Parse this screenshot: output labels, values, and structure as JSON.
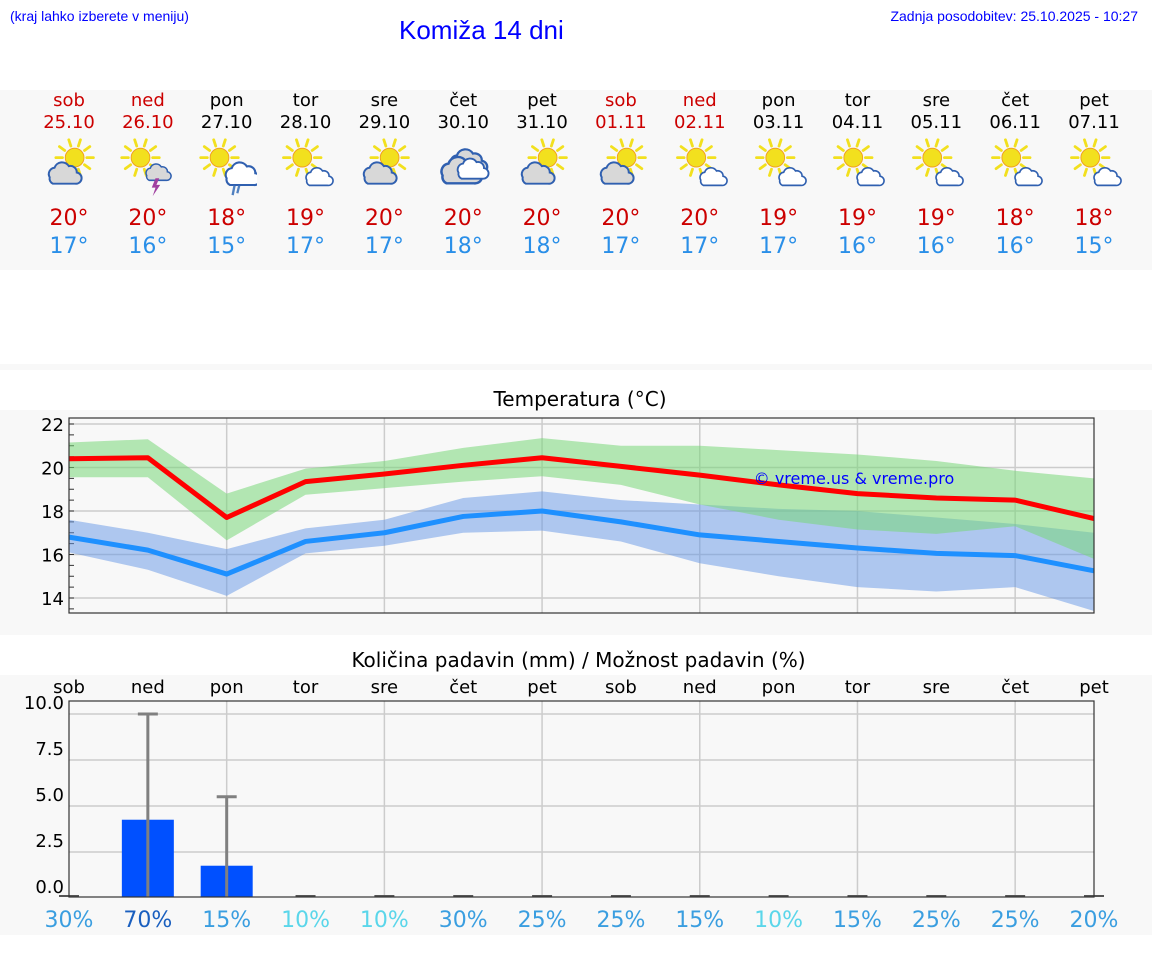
{
  "header": {
    "hint": "(kraj lahko izberete v meniju)",
    "title": "Komiža 14 dni",
    "updated": "Zadnja posodobitev: 25.10.2025 - 10:27"
  },
  "colors": {
    "weekend": "#cc0000",
    "max": "#ff0000",
    "min": "#1e90ff",
    "bar": "#0050ff"
  },
  "days": [
    {
      "name": "sob",
      "date": "25.10",
      "weekend": true,
      "icon": "partly-cloudy-icon",
      "max": "20°",
      "min": "17°"
    },
    {
      "name": "ned",
      "date": "26.10",
      "weekend": true,
      "icon": "thunderstorm-icon",
      "max": "20°",
      "min": "16°"
    },
    {
      "name": "pon",
      "date": "27.10",
      "weekend": false,
      "icon": "rain-shower-icon",
      "max": "18°",
      "min": "15°"
    },
    {
      "name": "tor",
      "date": "28.10",
      "weekend": false,
      "icon": "mostly-sunny-icon",
      "max": "19°",
      "min": "17°"
    },
    {
      "name": "sre",
      "date": "29.10",
      "weekend": false,
      "icon": "partly-cloudy-icon",
      "max": "20°",
      "min": "17°"
    },
    {
      "name": "čet",
      "date": "30.10",
      "weekend": false,
      "icon": "cloudy-icon",
      "max": "20°",
      "min": "18°"
    },
    {
      "name": "pet",
      "date": "31.10",
      "weekend": false,
      "icon": "partly-cloudy-icon",
      "max": "20°",
      "min": "18°"
    },
    {
      "name": "sob",
      "date": "01.11",
      "weekend": true,
      "icon": "partly-cloudy-icon",
      "max": "20°",
      "min": "17°"
    },
    {
      "name": "ned",
      "date": "02.11",
      "weekend": true,
      "icon": "mostly-sunny-icon",
      "max": "20°",
      "min": "17°"
    },
    {
      "name": "pon",
      "date": "03.11",
      "weekend": false,
      "icon": "mostly-sunny-icon",
      "max": "19°",
      "min": "17°"
    },
    {
      "name": "tor",
      "date": "04.11",
      "weekend": false,
      "icon": "mostly-sunny-icon",
      "max": "19°",
      "min": "16°"
    },
    {
      "name": "sre",
      "date": "05.11",
      "weekend": false,
      "icon": "mostly-sunny-icon",
      "max": "19°",
      "min": "16°"
    },
    {
      "name": "čet",
      "date": "06.11",
      "weekend": false,
      "icon": "mostly-sunny-icon",
      "max": "18°",
      "min": "16°"
    },
    {
      "name": "pet",
      "date": "07.11",
      "weekend": false,
      "icon": "mostly-sunny-icon",
      "max": "18°",
      "min": "15°"
    }
  ],
  "chart_data": [
    {
      "type": "line",
      "title": "Temperatura (°C)",
      "watermark": "© vreme.us & vreme.pro",
      "x": [
        "25.10",
        "26.10",
        "27.10",
        "28.10",
        "29.10",
        "30.10",
        "31.10",
        "01.11",
        "02.11",
        "03.11",
        "04.11",
        "05.11",
        "06.11",
        "07.11"
      ],
      "ylim": [
        13.3,
        22.3
      ],
      "yticks": [
        "14",
        "16",
        "18",
        "20",
        "22"
      ],
      "series": [
        {
          "name": "max",
          "values": [
            20.4,
            20.45,
            17.7,
            19.35,
            19.7,
            20.1,
            20.45,
            20.05,
            19.65,
            19.2,
            18.8,
            18.6,
            18.5,
            17.65
          ],
          "upper": [
            21.15,
            21.3,
            18.8,
            19.95,
            20.3,
            20.9,
            21.35,
            21.0,
            21.0,
            20.8,
            20.6,
            20.3,
            19.85,
            19.5
          ],
          "lower": [
            19.55,
            19.55,
            16.65,
            18.75,
            19.05,
            19.35,
            19.6,
            19.2,
            18.3,
            17.6,
            17.15,
            16.95,
            17.3,
            15.8
          ]
        },
        {
          "name": "min",
          "values": [
            16.8,
            16.2,
            15.1,
            16.6,
            17.0,
            17.75,
            18.0,
            17.5,
            16.9,
            16.6,
            16.3,
            16.05,
            15.95,
            15.25
          ],
          "upper": [
            17.6,
            17.0,
            16.25,
            17.2,
            17.6,
            18.6,
            18.9,
            18.5,
            18.3,
            18.1,
            18.0,
            17.7,
            17.4,
            17.0
          ],
          "lower": [
            16.1,
            15.3,
            14.1,
            16.05,
            16.4,
            17.0,
            17.1,
            16.6,
            15.6,
            15.0,
            14.5,
            14.3,
            14.5,
            13.4
          ]
        }
      ]
    },
    {
      "type": "bar",
      "title": "Količina padavin (mm) / Možnost padavin (%)",
      "categories": [
        "sob",
        "ned",
        "pon",
        "tor",
        "sre",
        "čet",
        "pet",
        "sob",
        "ned",
        "pon",
        "tor",
        "sre",
        "čet",
        "pet"
      ],
      "values": [
        0,
        4.2,
        1.7,
        0,
        0,
        0,
        0,
        0,
        0,
        0,
        0,
        0,
        0,
        0
      ],
      "error_max": [
        0,
        10.0,
        5.5,
        0,
        0,
        0,
        0,
        0,
        0,
        0,
        0,
        0,
        0,
        0
      ],
      "probability": [
        "30%",
        "70%",
        "15%",
        "10%",
        "10%",
        "30%",
        "25%",
        "25%",
        "15%",
        "10%",
        "15%",
        "25%",
        "25%",
        "20%"
      ],
      "ylim": [
        0,
        10.65
      ],
      "yticks": [
        "0.0",
        "2.5",
        "5.0",
        "7.5",
        "10.0"
      ]
    }
  ]
}
